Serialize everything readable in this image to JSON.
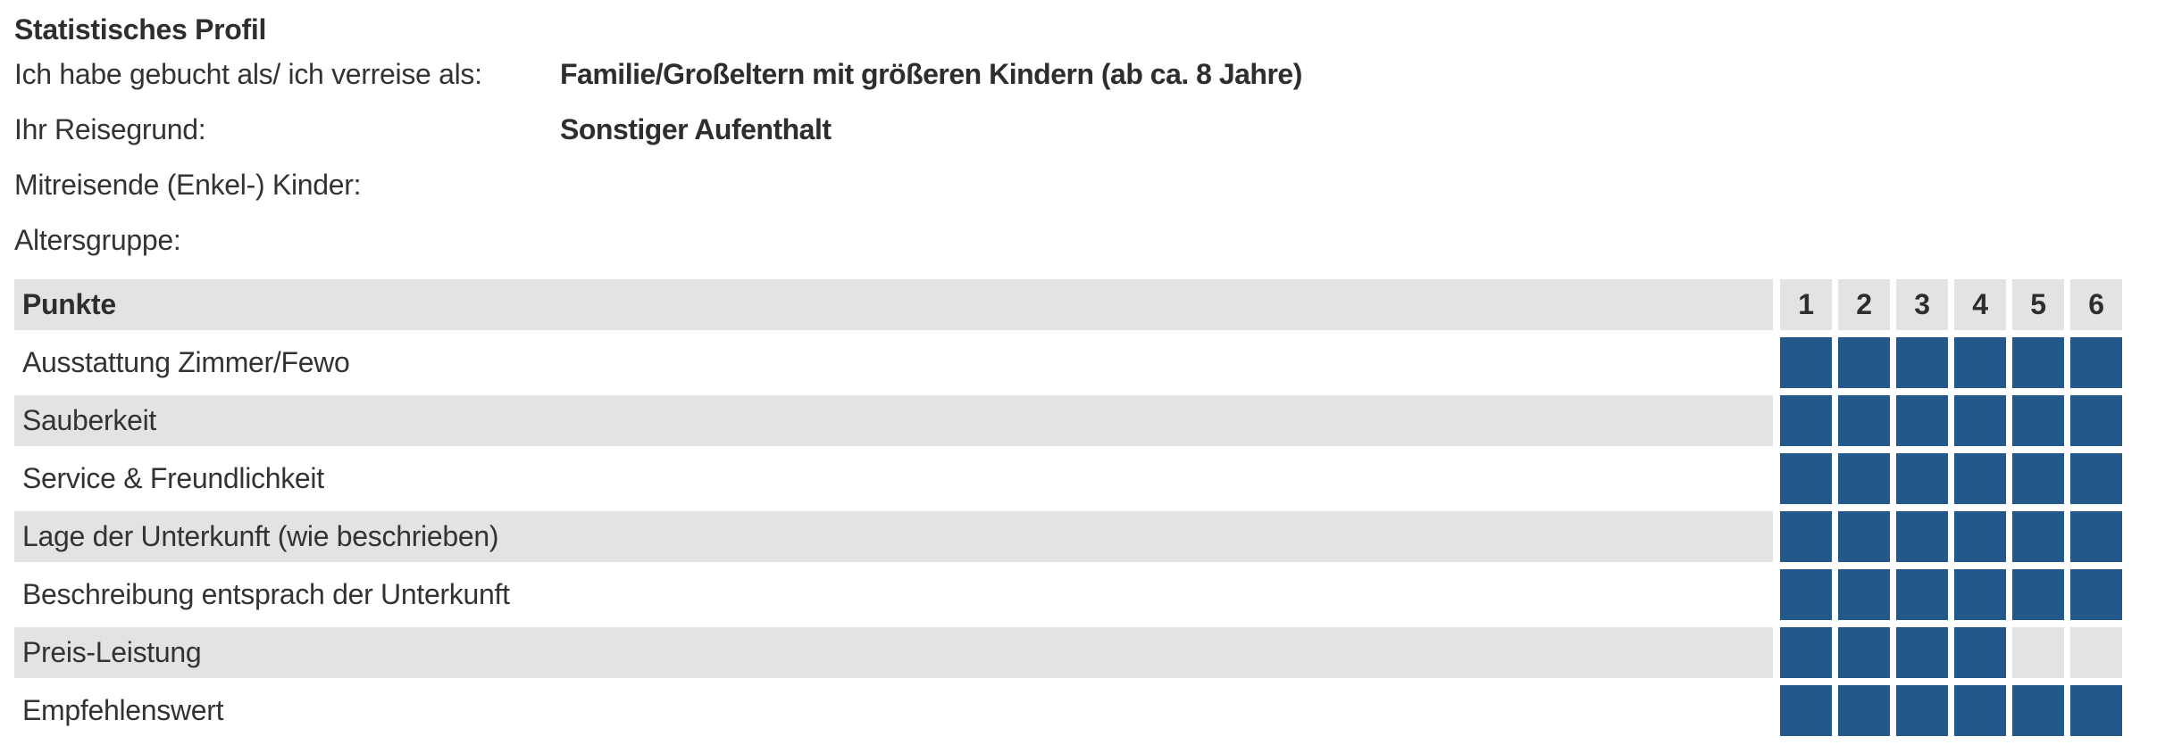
{
  "title": "Statistisches Profil",
  "profile": {
    "fields": [
      {
        "label": "Ich habe gebucht als/ ich verreise als:",
        "value": "Familie/Großeltern mit größeren Kindern (ab ca. 8 Jahre)"
      },
      {
        "label": "Ihr Reisegrund:",
        "value": "Sonstiger Aufenthalt"
      },
      {
        "label": "Mitreisende (Enkel-) Kinder:",
        "value": ""
      },
      {
        "label": "Altersgruppe:",
        "value": ""
      }
    ]
  },
  "ratings": {
    "header_label": "Punkte",
    "scale": [
      "1",
      "2",
      "3",
      "4",
      "5",
      "6"
    ],
    "max_points": 6,
    "rows": [
      {
        "label": "Ausstattung Zimmer/Fewo",
        "points": 6
      },
      {
        "label": "Sauberkeit",
        "points": 6
      },
      {
        "label": "Service & Freundlichkeit",
        "points": 6
      },
      {
        "label": "Lage der Unterkunft (wie beschrieben)",
        "points": 6
      },
      {
        "label": "Beschreibung entsprach der Unterkunft",
        "points": 6
      },
      {
        "label": "Preis-Leistung",
        "points": 4
      },
      {
        "label": "Empfehlenswert",
        "points": 6
      }
    ],
    "colors": {
      "filled_cell": "#23588a",
      "row_stripe": "#e3e3e3"
    }
  }
}
